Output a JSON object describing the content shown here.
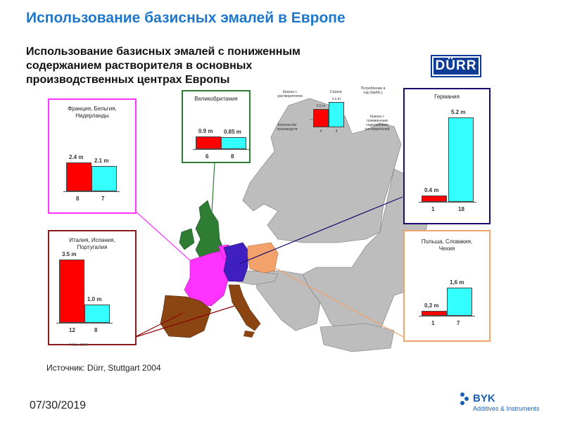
{
  "slide": {
    "title": "Использование базисных эмалей в Европе",
    "subtitle": "Использование базисных эмалей с пониженным содержанием растворителя в основных производственных центрах Европы",
    "logo_text": "DÜRR",
    "source": "Источник: Dürr, Stuttgart 2004",
    "date": "07/30/2019",
    "copyright": "© Dürr 2004",
    "brand_name": "BYK",
    "brand_sub": "Additives & Instruments"
  },
  "legend": {
    "solvent_label": "Краска с растворителем",
    "country_label": "Страна",
    "consumption_label": "Потребление в год (прибл.)",
    "low_solvent_label": "Краска с пониженным содержанием растворителей",
    "count_label": "Количество производств",
    "example_values": [
      "2.5 m",
      "x.x m"
    ],
    "example_counts": [
      "4",
      "4"
    ]
  },
  "colors": {
    "solvent": "#ff0000",
    "low_solvent": "#33ffff",
    "france_region": "#ff33ff",
    "uk_region": "#2e7d32",
    "germany_region": "#3f1fbf",
    "iberia_italy_region": "#8b4513",
    "poland_region": "#f4a26b",
    "other_europe": "#bdbdbd"
  },
  "chart_data": [
    {
      "type": "bar",
      "title": "Франция, Бельгия, Нидерланды",
      "categories": [
        "Краска с растворителем",
        "Краска с пониженным содержанием растворителей"
      ],
      "series": [
        {
          "values": [
            2.4,
            2.1
          ]
        }
      ],
      "value_labels": [
        "2.4 m",
        "2.1 m"
      ],
      "counts": [
        "8",
        "7"
      ]
    },
    {
      "type": "bar",
      "title": "Великобритания",
      "categories": [
        "Краска с растворителем",
        "Краска с пониженным содержанием растворителей"
      ],
      "series": [
        {
          "values": [
            0.9,
            0.85
          ]
        }
      ],
      "value_labels": [
        "0.9 m",
        "0.85 m"
      ],
      "counts": [
        "6",
        "8"
      ]
    },
    {
      "type": "bar",
      "title": "Германия",
      "categories": [
        "Краска с растворителем",
        "Краска с пониженным содержанием растворителей"
      ],
      "series": [
        {
          "values": [
            0.4,
            5.2
          ]
        }
      ],
      "value_labels": [
        "0.4 m",
        "5.2 m"
      ],
      "counts": [
        "1",
        "18"
      ]
    },
    {
      "type": "bar",
      "title": "Италия, Испания, Португалия",
      "categories": [
        "Краска с растворителем",
        "Краска с пониженным содержанием растворителей"
      ],
      "series": [
        {
          "values": [
            3.5,
            1.0
          ]
        }
      ],
      "value_labels": [
        "3.5 m",
        "1.0 m"
      ],
      "counts": [
        "12",
        "8"
      ]
    },
    {
      "type": "bar",
      "title": "Польша, Словакия, Чехия",
      "categories": [
        "Краска с растворителем",
        "Краска с пониженным содержанием растворителей"
      ],
      "series": [
        {
          "values": [
            0.3,
            1.6
          ]
        }
      ],
      "value_labels": [
        "0,3 m",
        "1,6 m"
      ],
      "counts": [
        "1",
        "7"
      ]
    }
  ]
}
